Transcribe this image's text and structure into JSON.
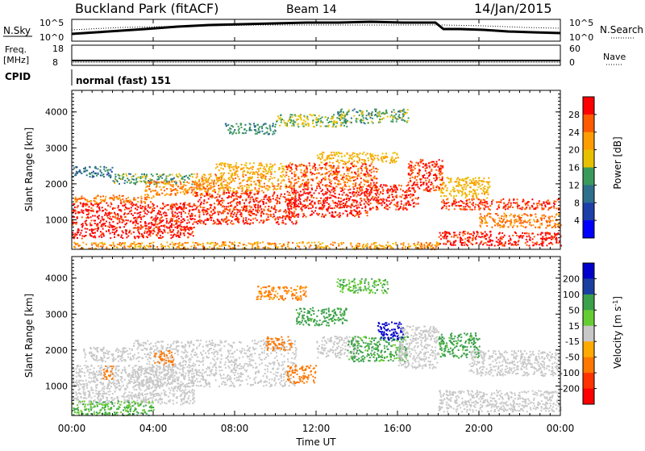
{
  "header": {
    "station": "Buckland Park (fitACF)",
    "beam": "Beam 14",
    "date": "14/Jan/2015"
  },
  "top_panels": {
    "nsky_label": "N.Sky",
    "nsky_ticks": [
      "10^5",
      "10^0"
    ],
    "nsearch_label": "N.Search",
    "nsearch_ticks": [
      "10^5",
      "10^0"
    ],
    "freq_label": "Freq.",
    "freq_unit": "[MHz]",
    "freq_ticks": [
      "18",
      "8"
    ],
    "nave_label": "Nave",
    "nave_ticks": [
      "60",
      "0"
    ],
    "cpid_label": "CPID",
    "cpid_text": "normal (fast) 151"
  },
  "x_axis": {
    "label": "Time UT",
    "ticks": [
      "00:00",
      "04:00",
      "08:00",
      "12:00",
      "16:00",
      "20:00",
      "00:00"
    ]
  },
  "colors": {
    "power": [
      "#0000ff",
      "#1c3fa8",
      "#2e6f8c",
      "#3a9a5c",
      "#e8c000",
      "#ff9c00",
      "#ff5a00",
      "#ff0000"
    ],
    "velocity": [
      "#0000cc",
      "#1a3fa0",
      "#3aa04a",
      "#66cc33",
      "#c8c8c8",
      "#ffaa00",
      "#ff7700",
      "#ff3300",
      "#ff0000"
    ]
  },
  "chart_data": [
    {
      "type": "heatmap",
      "name": "power",
      "xlabel": "Time UT",
      "ylabel": "Slant Range [km]",
      "xlim": [
        0,
        24
      ],
      "ylim": [
        180,
        4600
      ],
      "y_ticks": [
        "1000",
        "2000",
        "3000",
        "4000"
      ],
      "y_tick_values": [
        1000,
        2000,
        3000,
        4000
      ],
      "colorbar": {
        "label": "Power [dB]",
        "ticks": [
          "4",
          "8",
          "12",
          "16",
          "20",
          "24",
          "28"
        ],
        "tick_values": [
          4,
          8,
          12,
          16,
          20,
          24,
          28
        ],
        "range": [
          0,
          32
        ]
      },
      "bands": [
        {
          "t0": 0.0,
          "t1": 6.0,
          "r0": 500,
          "r1": 1500,
          "db": 30
        },
        {
          "t0": 0.0,
          "t1": 4.0,
          "r0": 1500,
          "r1": 1700,
          "db": 24
        },
        {
          "t0": 0.0,
          "t1": 2.0,
          "r0": 2200,
          "r1": 2500,
          "db": 10
        },
        {
          "t0": 2.0,
          "t1": 6.0,
          "r0": 2000,
          "r1": 2300,
          "db": 14
        },
        {
          "t0": 3.5,
          "t1": 7.0,
          "r0": 1700,
          "r1": 2100,
          "db": 24
        },
        {
          "t0": 6.0,
          "t1": 11.0,
          "r0": 900,
          "r1": 1800,
          "db": 28
        },
        {
          "t0": 6.0,
          "t1": 10.5,
          "r0": 1800,
          "r1": 2300,
          "db": 22
        },
        {
          "t0": 7.0,
          "t1": 10.5,
          "r0": 2300,
          "r1": 2600,
          "db": 20
        },
        {
          "t0": 10.5,
          "t1": 14.5,
          "r0": 1100,
          "r1": 1900,
          "db": 30
        },
        {
          "t0": 10.5,
          "t1": 15.0,
          "r0": 1900,
          "r1": 2600,
          "db": 26
        },
        {
          "t0": 12.0,
          "t1": 16.0,
          "r0": 2600,
          "r1": 2900,
          "db": 20
        },
        {
          "t0": 7.5,
          "t1": 10.0,
          "r0": 3400,
          "r1": 3700,
          "db": 12
        },
        {
          "t0": 10.0,
          "t1": 13.5,
          "r0": 3600,
          "r1": 3950,
          "db": 16
        },
        {
          "t0": 13.0,
          "t1": 16.5,
          "r0": 3700,
          "r1": 4100,
          "db": 14
        },
        {
          "t0": 14.5,
          "t1": 17.0,
          "r0": 1300,
          "r1": 2000,
          "db": 30
        },
        {
          "t0": 16.5,
          "t1": 18.2,
          "r0": 1800,
          "r1": 2700,
          "db": 28
        },
        {
          "t0": 18.0,
          "t1": 20.5,
          "r0": 1600,
          "r1": 2200,
          "db": 20
        },
        {
          "t0": 18.0,
          "t1": 24.0,
          "r0": 1300,
          "r1": 1600,
          "db": 28
        },
        {
          "t0": 18.0,
          "t1": 24.0,
          "r0": 300,
          "r1": 700,
          "db": 30
        },
        {
          "t0": 20.0,
          "t1": 24.0,
          "r0": 800,
          "r1": 1200,
          "db": 24
        },
        {
          "t0": 0.0,
          "t1": 18.0,
          "r0": 200,
          "r1": 400,
          "db": 22
        }
      ]
    },
    {
      "type": "heatmap",
      "name": "velocity",
      "xlabel": "Time UT",
      "ylabel": "Slant Range [km]",
      "xlim": [
        0,
        24
      ],
      "ylim": [
        180,
        4600
      ],
      "y_ticks": [
        "1000",
        "2000",
        "3000",
        "4000"
      ],
      "y_tick_values": [
        1000,
        2000,
        3000,
        4000
      ],
      "colorbar": {
        "label": "Velocity [m s^-1]",
        "ticks": [
          "200",
          "100",
          "50",
          "15",
          "-15",
          "-50",
          "-100",
          "-200"
        ],
        "tick_values": [
          200,
          100,
          50,
          15,
          -15,
          -50,
          -100,
          -200
        ],
        "range": [
          -250,
          250
        ]
      },
      "bands": [
        {
          "t0": 0.0,
          "t1": 6.0,
          "r0": 500,
          "r1": 1600,
          "v": 0
        },
        {
          "t0": 0.5,
          "t1": 3.0,
          "r0": 1700,
          "r1": 2100,
          "v": 0
        },
        {
          "t0": 3.0,
          "t1": 11.0,
          "r0": 1000,
          "r1": 2300,
          "v": 0
        },
        {
          "t0": 9.5,
          "t1": 10.8,
          "r0": 2000,
          "r1": 2400,
          "v": -60
        },
        {
          "t0": 10.5,
          "t1": 12.0,
          "r0": 1100,
          "r1": 1600,
          "v": -60
        },
        {
          "t0": 12.0,
          "t1": 14.0,
          "r0": 1800,
          "r1": 2400,
          "v": 0
        },
        {
          "t0": 13.5,
          "t1": 16.5,
          "r0": 1700,
          "r1": 2400,
          "v": 40
        },
        {
          "t0": 15.0,
          "t1": 16.3,
          "r0": 2300,
          "r1": 2800,
          "v": 220
        },
        {
          "t0": 16.0,
          "t1": 18.0,
          "r0": 1500,
          "r1": 2700,
          "v": 0
        },
        {
          "t0": 11.0,
          "t1": 13.5,
          "r0": 2700,
          "r1": 3200,
          "v": 45
        },
        {
          "t0": 9.0,
          "t1": 11.5,
          "r0": 3400,
          "r1": 3800,
          "v": -40
        },
        {
          "t0": 13.0,
          "t1": 15.5,
          "r0": 3600,
          "r1": 4000,
          "v": 30
        },
        {
          "t0": 18.0,
          "t1": 20.0,
          "r0": 1800,
          "r1": 2500,
          "v": 45
        },
        {
          "t0": 19.5,
          "t1": 24.0,
          "r0": 1300,
          "r1": 2000,
          "v": 0
        },
        {
          "t0": 0.0,
          "t1": 4.0,
          "r0": 200,
          "r1": 600,
          "v": 30
        },
        {
          "t0": 18.0,
          "t1": 24.0,
          "r0": 300,
          "r1": 900,
          "v": 0
        },
        {
          "t0": 1.5,
          "t1": 2.0,
          "r0": 1200,
          "r1": 1600,
          "v": -60
        },
        {
          "t0": 4.0,
          "t1": 5.0,
          "r0": 1600,
          "r1": 2000,
          "v": -60
        }
      ]
    }
  ]
}
